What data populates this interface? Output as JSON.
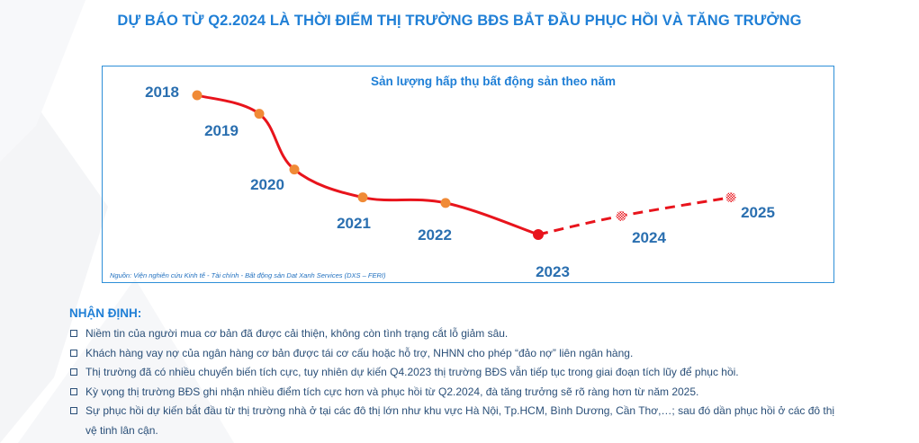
{
  "header": {
    "title": "DỰ BÁO TỪ Q2.2024 LÀ THỜI ĐIỂM THỊ TRƯỜNG BĐS BẮT ĐẦU PHỤC HỒI VÀ TĂNG TRƯỞNG"
  },
  "chart_data": {
    "type": "line",
    "title": "Sản lượng hấp thụ bất động sản theo năm",
    "categories": [
      "2018",
      "2019",
      "2020",
      "2021",
      "2022",
      "2023",
      "2024",
      "2025"
    ],
    "series": [
      {
        "values": [
          100,
          90,
          60,
          45,
          42,
          25,
          null,
          null
        ]
      },
      {
        "values": [
          null,
          null,
          null,
          null,
          null,
          25,
          35,
          45
        ]
      }
    ],
    "y_axis_visible": false,
    "grid": false,
    "legend": "none",
    "colors": {
      "line": "#e8141c",
      "marker": "#f08a36",
      "current_marker": "#e8141c",
      "frame": "#2e8fd8",
      "labels": "#2a6fb0"
    },
    "source": "Nguồn: Viện nghiên cứu Kinh tế - Tài chính - Bất động sản Dat Xanh Services (DXS – FERI)"
  },
  "analysis": {
    "heading": "NHẬN ĐỊNH:",
    "items": [
      "Niềm tin của người mua cơ bản đã được cải thiện, không còn tình trạng cắt lỗ giảm sâu.",
      "Khách hàng vay nợ của ngân hàng cơ bản được tái cơ cấu hoặc hỗ trợ, NHNN cho phép “đảo nợ” liên ngân hàng.",
      "Thị trường đã có nhiều chuyển biến tích cực, tuy nhiên dự kiến Q4.2023 thị trường BĐS vẫn tiếp tục trong giai đoạn tích lũy để phục hồi.",
      "Kỳ vọng thị trường BĐS ghi nhận nhiều điểm tích cực hơn và phục hồi từ Q2.2024, đà tăng trưởng sẽ rõ ràng hơn từ năm 2025.",
      "Sự phục hồi dự kiến bắt đầu từ thị trường nhà ở tại các đô thị lớn như khu vực Hà Nội, Tp.HCM, Bình Dương, Cần Thơ,…; sau đó dần phục hồi ở các đô thị vệ tinh lân cận."
    ]
  }
}
